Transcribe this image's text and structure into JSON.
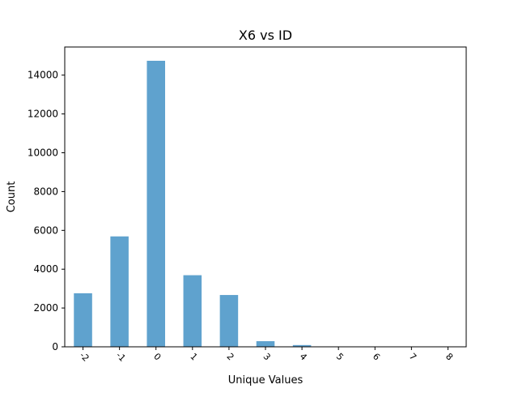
{
  "chart_data": {
    "type": "bar",
    "title": "X6 vs ID",
    "xlabel": "Unique Values",
    "ylabel": "Count",
    "categories": [
      "-2",
      "-1",
      "0",
      "1",
      "2",
      "3",
      "4",
      "5",
      "6",
      "7",
      "8"
    ],
    "values": [
      2760,
      5690,
      14740,
      3690,
      2670,
      290,
      90,
      15,
      10,
      5,
      3
    ],
    "ylim": [
      0,
      15450
    ],
    "yticks": [
      0,
      2000,
      4000,
      6000,
      8000,
      10000,
      12000,
      14000
    ],
    "ytick_labels": [
      "0",
      "2000",
      "4000",
      "6000",
      "8000",
      "10000",
      "12000",
      "14000"
    ],
    "xtick_rotation_deg": 45,
    "grid": false,
    "legend": "none",
    "bar_color": "#5fa2ce"
  }
}
